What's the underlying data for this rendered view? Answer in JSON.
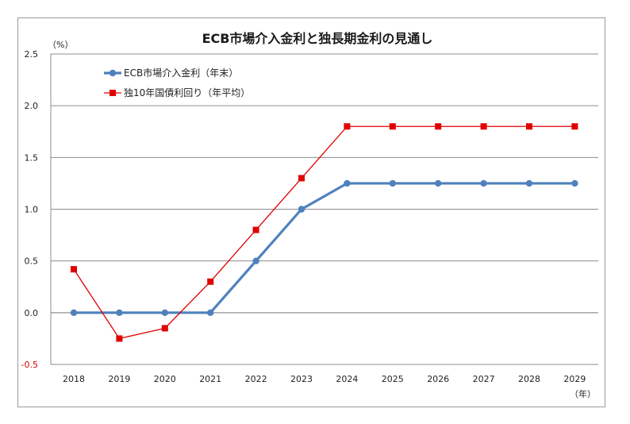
{
  "chart_data": {
    "type": "line",
    "title": "ECB市場介入金利と独長期金利の見通し",
    "y_unit": "（%）",
    "x_unit": "（年）",
    "categories": [
      "2018",
      "2019",
      "2020",
      "2021",
      "2022",
      "2023",
      "2024",
      "2025",
      "2026",
      "2027",
      "2028",
      "2029"
    ],
    "ylim": [
      -0.5,
      2.5
    ],
    "yticks": [
      "2.5",
      "2.0",
      "1.5",
      "1.0",
      "0.5",
      "0.0",
      "-0.5"
    ],
    "ytick_values": [
      2.5,
      2.0,
      1.5,
      1.0,
      0.5,
      0.0,
      -0.5
    ],
    "grid": true,
    "legend_position": "top-left",
    "series": [
      {
        "name": "ECB市場介入金利（年末）",
        "color": "#4f81bd",
        "marker": "circle",
        "values": [
          0.0,
          0.0,
          0.0,
          0.0,
          0.5,
          1.0,
          1.25,
          1.25,
          1.25,
          1.25,
          1.25,
          1.25
        ]
      },
      {
        "name": "独10年国債利回り（年平均）",
        "color": "#e00000",
        "marker": "square",
        "values": [
          0.42,
          -0.25,
          -0.15,
          0.3,
          0.8,
          1.3,
          1.8,
          1.8,
          1.8,
          1.8,
          1.8,
          1.8
        ]
      }
    ]
  }
}
